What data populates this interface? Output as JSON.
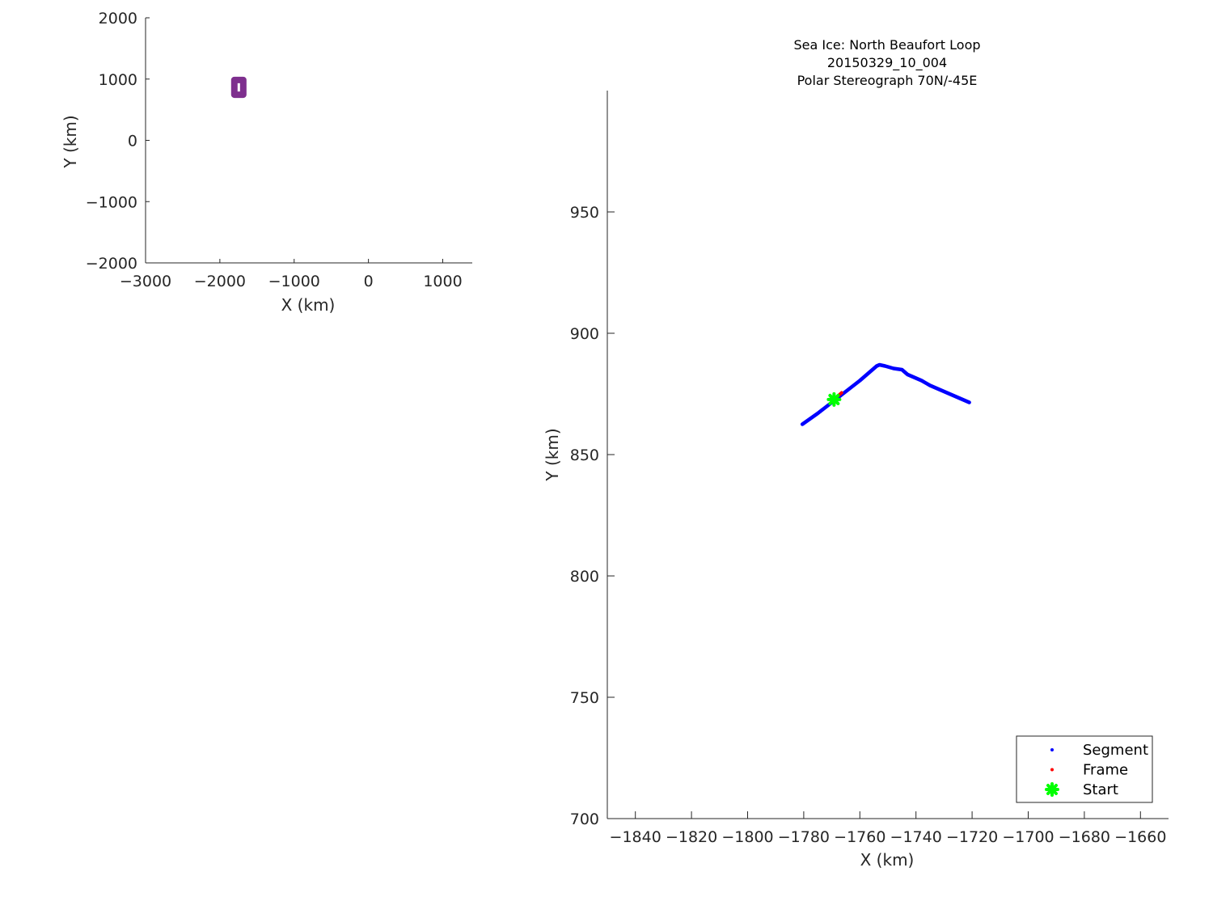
{
  "chart_data": [
    {
      "type": "scatter",
      "description_role": "overview-map",
      "xlabel": "X (km)",
      "ylabel": "Y (km)",
      "xlim": [
        -3000,
        1400
      ],
      "ylim": [
        -2000,
        2000
      ],
      "xticks": [
        -3000,
        -2000,
        -1000,
        0,
        1000
      ],
      "yticks": [
        -2000,
        -1000,
        0,
        1000,
        2000
      ],
      "grid": false,
      "box": false,
      "series": [
        {
          "color": "#7E2F8E",
          "points": [
            [
              -1805,
              745
            ],
            [
              -1685,
              745
            ],
            [
              -1685,
              985
            ],
            [
              -1805,
              985
            ]
          ]
        }
      ]
    },
    {
      "type": "line",
      "title": [
        "Sea Ice: North Beaufort Loop",
        "20150329_10_004",
        "Polar Stereograph 70N/-45E"
      ],
      "xlabel": "X (km)",
      "ylabel": "Y (km)",
      "xlim": [
        -1850,
        -1650
      ],
      "ylim": [
        700,
        1000
      ],
      "xticks": [
        -1840,
        -1820,
        -1800,
        -1780,
        -1760,
        -1740,
        -1720,
        -1700,
        -1680,
        -1660
      ],
      "yticks": [
        700,
        750,
        800,
        850,
        900,
        950
      ],
      "grid": false,
      "box": false,
      "legend": {
        "placement": "bottom-right",
        "entries": [
          "Segment",
          "Frame",
          "Start"
        ]
      },
      "series": [
        {
          "name": "Segment",
          "color": "#0000FF",
          "x": [
            -1780.5,
            -1775,
            -1770,
            -1765,
            -1760,
            -1756,
            -1754,
            -1753,
            -1751,
            -1748,
            -1745,
            -1743,
            -1740,
            -1738,
            -1735,
            -1732,
            -1728,
            -1724,
            -1721
          ],
          "y": [
            862.5,
            867,
            871.5,
            876,
            880.5,
            884.5,
            886.5,
            887,
            886.5,
            885.5,
            885,
            883,
            881.5,
            880.5,
            878.5,
            877,
            875,
            873,
            871.5
          ]
        },
        {
          "name": "Frame",
          "color": "#FF0000",
          "x": [
            -1769.5,
            -1766.5
          ],
          "y": [
            872.5,
            875.5
          ]
        },
        {
          "name": "Start",
          "color": "#00FF00",
          "x": [
            -1769.2
          ],
          "y": [
            872.7
          ]
        }
      ]
    }
  ]
}
